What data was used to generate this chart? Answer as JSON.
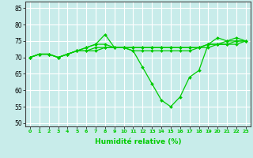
{
  "xlabel": "Humidité relative (%)",
  "ylabel": "",
  "bg_color": "#c8ecea",
  "grid_color": "#aadddd",
  "line_color": "#00cc00",
  "marker": "D",
  "xlim": [
    -0.5,
    23.5
  ],
  "ylim": [
    49,
    87
  ],
  "yticks": [
    50,
    55,
    60,
    65,
    70,
    75,
    80,
    85
  ],
  "xticks": [
    0,
    1,
    2,
    3,
    4,
    5,
    6,
    7,
    8,
    9,
    10,
    11,
    12,
    13,
    14,
    15,
    16,
    17,
    18,
    19,
    20,
    21,
    22,
    23
  ],
  "series": [
    [
      70,
      71,
      71,
      70,
      71,
      72,
      73,
      74,
      77,
      73,
      73,
      72,
      67,
      62,
      57,
      55,
      58,
      64,
      66,
      74,
      76,
      75,
      76,
      75
    ],
    [
      70,
      71,
      71,
      70,
      71,
      72,
      73,
      74,
      74,
      73,
      73,
      72,
      72,
      72,
      72,
      72,
      72,
      72,
      73,
      73,
      74,
      75,
      75,
      75
    ],
    [
      70,
      71,
      71,
      70,
      71,
      72,
      72,
      73,
      73,
      73,
      73,
      73,
      73,
      73,
      73,
      73,
      73,
      73,
      73,
      74,
      74,
      74,
      74,
      75
    ],
    [
      70,
      71,
      71,
      70,
      71,
      72,
      72,
      72,
      73,
      73,
      73,
      73,
      73,
      73,
      73,
      73,
      73,
      73,
      73,
      74,
      74,
      74,
      75,
      75
    ]
  ]
}
